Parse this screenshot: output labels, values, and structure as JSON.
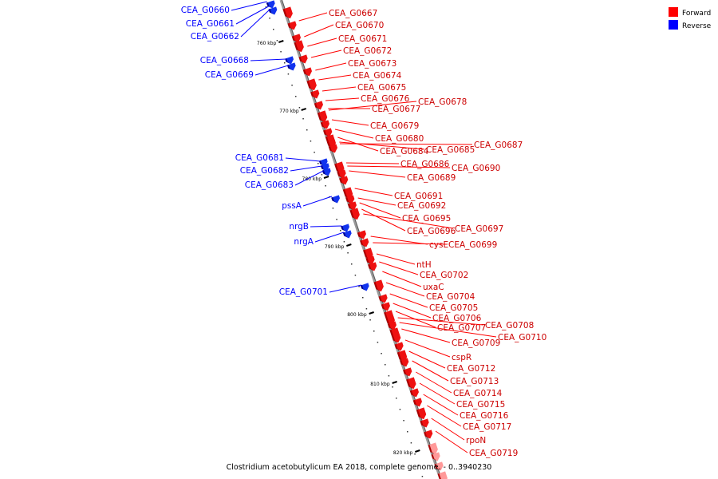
{
  "caption": "Clostridium acetobutylicum EA 2018, complete genome. - 0..3940230",
  "legend": [
    {
      "label": "Forward",
      "color": "#ff0000"
    },
    {
      "label": "Reverse",
      "color": "#0000ff"
    }
  ],
  "ticks": [
    "760 kbp",
    "770 kbp",
    "780 kbp",
    "790 kbp",
    "800 kbp",
    "810 kbp",
    "820 kbp"
  ],
  "reverse_labels": [
    "CEA_G0660",
    "CEA_G0661",
    "CEA_G0662",
    "CEA_G0668",
    "CEA_G0669",
    "CEA_G0681",
    "CEA_G0682",
    "CEA_G0683",
    "pssA",
    "nrgB",
    "nrgA",
    "CEA_G0701"
  ],
  "forward_labels": [
    "CEA_G0667",
    "CEA_G0670",
    "CEA_G0671",
    "CEA_G0672",
    "CEA_G0673",
    "CEA_G0674",
    "CEA_G0675",
    "CEA_G0676",
    "CEA_G0677",
    "CEA_G0678",
    "CEA_G0679",
    "CEA_G0680",
    "CEA_G0684",
    "CEA_G0685",
    "CEA_G0687",
    "CEA_G0686",
    "CEA_G0690",
    "CEA_G0689",
    "CEA_G0691",
    "CEA_G0692",
    "CEA_G0695",
    "CEA_G0696",
    "CEA_G0697",
    "cysE",
    "CEA_G0699",
    "ntH",
    "CEA_G0702",
    "uxaC",
    "CEA_G0704",
    "CEA_G0705",
    "CEA_G0706",
    "CEA_G0707",
    "CEA_G0708",
    "CEA_G0710",
    "CEA_G0709",
    "cspR",
    "CEA_G0712",
    "CEA_G0713",
    "CEA_G0714",
    "CEA_G0715",
    "CEA_G0716",
    "CEA_G0717",
    "rpoN",
    "CEA_G0719"
  ]
}
